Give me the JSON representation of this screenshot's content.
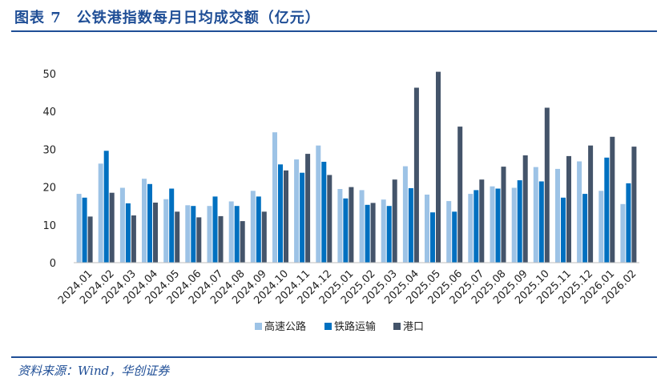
{
  "title": "图表 7　公铁港指数每月日均成交额（亿元）",
  "source": "资料来源：Wind，华创证券",
  "colors": {
    "highway": "#9dc3e6",
    "rail": "#0070c0",
    "port": "#44546a",
    "accent": "#1f4e96"
  },
  "chart_data": {
    "type": "bar",
    "title": "",
    "xlabel": "",
    "ylabel": "",
    "ylim": [
      0,
      50
    ],
    "yticks": [
      0,
      10,
      20,
      30,
      40,
      50
    ],
    "grid": false,
    "legend": "bottom",
    "categories": [
      "2024.01",
      "2024.02",
      "2024.03",
      "2024.04",
      "2024.05",
      "2024.06",
      "2024.07",
      "2024.08",
      "2024.09",
      "2024.10",
      "2024.11",
      "2024.12",
      "2025.01",
      "2025.02",
      "2025.03",
      "2025.04",
      "2025.05",
      "2025.06",
      "2025.07",
      "2025.08",
      "2025.09",
      "2025.10",
      "2025.11",
      "2025.12",
      "2026.01",
      "2026.02"
    ],
    "series": [
      {
        "name": "高速公路",
        "values": [
          18.2,
          26.2,
          19.8,
          22.2,
          16.8,
          15.2,
          15.0,
          16.2,
          19.0,
          34.5,
          27.3,
          31.0,
          19.5,
          19.2,
          16.7,
          25.5,
          18.0,
          16.3,
          18.2,
          20.2,
          19.8,
          25.3,
          24.8,
          26.8,
          19.0,
          15.5
        ]
      },
      {
        "name": "铁路运输",
        "values": [
          17.2,
          29.6,
          15.7,
          20.8,
          19.6,
          15.0,
          17.5,
          15.0,
          17.5,
          26.0,
          23.8,
          26.7,
          17.0,
          15.3,
          15.0,
          19.7,
          13.3,
          13.5,
          19.2,
          19.6,
          21.8,
          21.5,
          17.2,
          18.2,
          27.8,
          21.0
        ]
      },
      {
        "name": "港口",
        "values": [
          12.2,
          18.5,
          12.5,
          15.9,
          13.5,
          12.0,
          12.3,
          11.0,
          13.5,
          24.4,
          28.8,
          23.2,
          20.0,
          15.8,
          22.0,
          46.3,
          50.5,
          36.0,
          22.0,
          25.4,
          28.4,
          41.0,
          28.2,
          31.0,
          33.3,
          30.7
        ]
      }
    ]
  }
}
